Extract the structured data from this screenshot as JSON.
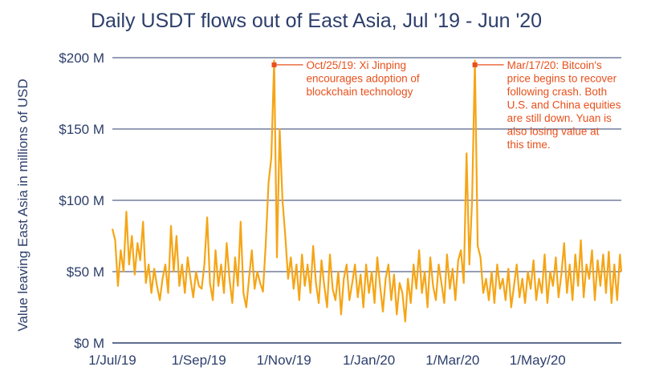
{
  "chart_data": {
    "type": "line",
    "title": "Daily USDT flows out of East Asia, Jul '19 - Jun '20",
    "ylabel": "Value leaving East Asia in millions of USD",
    "xlabel": "",
    "ylim": [
      0,
      200
    ],
    "y_ticks": [
      {
        "value": 0,
        "label": "$0 M"
      },
      {
        "value": 50,
        "label": "$50 M"
      },
      {
        "value": 100,
        "label": "$100 M"
      },
      {
        "value": 150,
        "label": "$150 M"
      },
      {
        "value": 200,
        "label": "$200 M"
      }
    ],
    "x_ticks": [
      {
        "date": "2019-07-01",
        "label": "1/Jul/19"
      },
      {
        "date": "2019-09-01",
        "label": "1/Sep/19"
      },
      {
        "date": "2019-11-01",
        "label": "1/Nov/19"
      },
      {
        "date": "2020-01-01",
        "label": "1/Jan/20"
      },
      {
        "date": "2020-03-01",
        "label": "1/Mar/20"
      },
      {
        "date": "2020-05-01",
        "label": "1/May/20"
      }
    ],
    "x_range": [
      "2019-07-01",
      "2020-06-30"
    ],
    "grid": "horizontal",
    "series": [
      {
        "color": "#f5a516",
        "points": [
          [
            "2019-07-01",
            80
          ],
          [
            "2019-07-03",
            72
          ],
          [
            "2019-07-05",
            40
          ],
          [
            "2019-07-07",
            65
          ],
          [
            "2019-07-09",
            50
          ],
          [
            "2019-07-11",
            92
          ],
          [
            "2019-07-13",
            55
          ],
          [
            "2019-07-15",
            75
          ],
          [
            "2019-07-17",
            48
          ],
          [
            "2019-07-19",
            70
          ],
          [
            "2019-07-21",
            58
          ],
          [
            "2019-07-23",
            85
          ],
          [
            "2019-07-25",
            42
          ],
          [
            "2019-07-27",
            55
          ],
          [
            "2019-07-29",
            35
          ],
          [
            "2019-07-31",
            52
          ],
          [
            "2019-08-02",
            40
          ],
          [
            "2019-08-04",
            30
          ],
          [
            "2019-08-06",
            45
          ],
          [
            "2019-08-08",
            55
          ],
          [
            "2019-08-10",
            35
          ],
          [
            "2019-08-12",
            82
          ],
          [
            "2019-08-14",
            50
          ],
          [
            "2019-08-16",
            75
          ],
          [
            "2019-08-18",
            40
          ],
          [
            "2019-08-20",
            55
          ],
          [
            "2019-08-22",
            35
          ],
          [
            "2019-08-24",
            60
          ],
          [
            "2019-08-26",
            45
          ],
          [
            "2019-08-28",
            32
          ],
          [
            "2019-08-30",
            50
          ],
          [
            "2019-09-01",
            40
          ],
          [
            "2019-09-03",
            38
          ],
          [
            "2019-09-05",
            55
          ],
          [
            "2019-09-07",
            88
          ],
          [
            "2019-09-09",
            42
          ],
          [
            "2019-09-11",
            30
          ],
          [
            "2019-09-13",
            65
          ],
          [
            "2019-09-15",
            40
          ],
          [
            "2019-09-17",
            55
          ],
          [
            "2019-09-19",
            35
          ],
          [
            "2019-09-21",
            70
          ],
          [
            "2019-09-23",
            45
          ],
          [
            "2019-09-25",
            28
          ],
          [
            "2019-09-27",
            60
          ],
          [
            "2019-09-29",
            40
          ],
          [
            "2019-10-01",
            85
          ],
          [
            "2019-10-03",
            35
          ],
          [
            "2019-10-05",
            25
          ],
          [
            "2019-10-07",
            45
          ],
          [
            "2019-10-09",
            65
          ],
          [
            "2019-10-11",
            38
          ],
          [
            "2019-10-13",
            50
          ],
          [
            "2019-10-15",
            42
          ],
          [
            "2019-10-17",
            36
          ],
          [
            "2019-10-19",
            70
          ],
          [
            "2019-10-21",
            112
          ],
          [
            "2019-10-23",
            130
          ],
          [
            "2019-10-25",
            198
          ],
          [
            "2019-10-27",
            60
          ],
          [
            "2019-10-29",
            150
          ],
          [
            "2019-10-31",
            100
          ],
          [
            "2019-11-02",
            75
          ],
          [
            "2019-11-04",
            45
          ],
          [
            "2019-11-06",
            60
          ],
          [
            "2019-11-08",
            38
          ],
          [
            "2019-11-10",
            55
          ],
          [
            "2019-11-12",
            30
          ],
          [
            "2019-11-14",
            62
          ],
          [
            "2019-11-16",
            40
          ],
          [
            "2019-11-18",
            55
          ],
          [
            "2019-11-20",
            35
          ],
          [
            "2019-11-22",
            68
          ],
          [
            "2019-11-24",
            42
          ],
          [
            "2019-11-26",
            28
          ],
          [
            "2019-11-28",
            58
          ],
          [
            "2019-11-30",
            40
          ],
          [
            "2019-12-02",
            25
          ],
          [
            "2019-12-04",
            62
          ],
          [
            "2019-12-06",
            38
          ],
          [
            "2019-12-08",
            30
          ],
          [
            "2019-12-10",
            50
          ],
          [
            "2019-12-12",
            20
          ],
          [
            "2019-12-14",
            45
          ],
          [
            "2019-12-16",
            55
          ],
          [
            "2019-12-18",
            30
          ],
          [
            "2019-12-20",
            42
          ],
          [
            "2019-12-22",
            55
          ],
          [
            "2019-12-24",
            32
          ],
          [
            "2019-12-26",
            48
          ],
          [
            "2019-12-28",
            25
          ],
          [
            "2019-12-30",
            55
          ],
          [
            "2020-01-01",
            35
          ],
          [
            "2020-01-03",
            50
          ],
          [
            "2020-01-05",
            28
          ],
          [
            "2020-01-07",
            60
          ],
          [
            "2020-01-09",
            40
          ],
          [
            "2020-01-11",
            22
          ],
          [
            "2020-01-13",
            45
          ],
          [
            "2020-01-15",
            55
          ],
          [
            "2020-01-17",
            30
          ],
          [
            "2020-01-19",
            48
          ],
          [
            "2020-01-21",
            20
          ],
          [
            "2020-01-23",
            42
          ],
          [
            "2020-01-25",
            35
          ],
          [
            "2020-01-27",
            15
          ],
          [
            "2020-01-29",
            45
          ],
          [
            "2020-01-31",
            28
          ],
          [
            "2020-02-02",
            55
          ],
          [
            "2020-02-04",
            38
          ],
          [
            "2020-02-06",
            65
          ],
          [
            "2020-02-08",
            35
          ],
          [
            "2020-02-10",
            50
          ],
          [
            "2020-02-12",
            25
          ],
          [
            "2020-02-14",
            60
          ],
          [
            "2020-02-16",
            40
          ],
          [
            "2020-02-18",
            30
          ],
          [
            "2020-02-20",
            55
          ],
          [
            "2020-02-22",
            42
          ],
          [
            "2020-02-24",
            28
          ],
          [
            "2020-02-26",
            62
          ],
          [
            "2020-02-28",
            38
          ],
          [
            "2020-03-01",
            52
          ],
          [
            "2020-03-03",
            30
          ],
          [
            "2020-03-05",
            58
          ],
          [
            "2020-03-07",
            65
          ],
          [
            "2020-03-09",
            42
          ],
          [
            "2020-03-11",
            133
          ],
          [
            "2020-03-13",
            55
          ],
          [
            "2020-03-15",
            100
          ],
          [
            "2020-03-17",
            198
          ],
          [
            "2020-03-19",
            68
          ],
          [
            "2020-03-21",
            60
          ],
          [
            "2020-03-23",
            35
          ],
          [
            "2020-03-25",
            45
          ],
          [
            "2020-03-27",
            30
          ],
          [
            "2020-03-29",
            50
          ],
          [
            "2020-03-31",
            28
          ],
          [
            "2020-04-02",
            55
          ],
          [
            "2020-04-04",
            38
          ],
          [
            "2020-04-06",
            45
          ],
          [
            "2020-04-08",
            30
          ],
          [
            "2020-04-10",
            52
          ],
          [
            "2020-04-12",
            25
          ],
          [
            "2020-04-14",
            40
          ],
          [
            "2020-04-16",
            55
          ],
          [
            "2020-04-18",
            32
          ],
          [
            "2020-04-20",
            45
          ],
          [
            "2020-04-22",
            28
          ],
          [
            "2020-04-24",
            50
          ],
          [
            "2020-04-26",
            38
          ],
          [
            "2020-04-28",
            58
          ],
          [
            "2020-04-30",
            30
          ],
          [
            "2020-05-02",
            45
          ],
          [
            "2020-05-04",
            35
          ],
          [
            "2020-05-06",
            62
          ],
          [
            "2020-05-08",
            28
          ],
          [
            "2020-05-10",
            50
          ],
          [
            "2020-05-12",
            40
          ],
          [
            "2020-05-14",
            60
          ],
          [
            "2020-05-16",
            32
          ],
          [
            "2020-05-18",
            48
          ],
          [
            "2020-05-20",
            70
          ],
          [
            "2020-05-22",
            35
          ],
          [
            "2020-05-24",
            55
          ],
          [
            "2020-05-26",
            30
          ],
          [
            "2020-05-28",
            62
          ],
          [
            "2020-05-30",
            40
          ],
          [
            "2020-06-01",
            72
          ],
          [
            "2020-06-03",
            32
          ],
          [
            "2020-06-05",
            55
          ],
          [
            "2020-06-07",
            45
          ],
          [
            "2020-06-09",
            65
          ],
          [
            "2020-06-11",
            30
          ],
          [
            "2020-06-13",
            58
          ],
          [
            "2020-06-15",
            40
          ],
          [
            "2020-06-17",
            62
          ],
          [
            "2020-06-19",
            35
          ],
          [
            "2020-06-21",
            64
          ],
          [
            "2020-06-23",
            28
          ],
          [
            "2020-06-25",
            55
          ],
          [
            "2020-06-27",
            30
          ],
          [
            "2020-06-29",
            62
          ],
          [
            "2020-06-30",
            50
          ]
        ]
      }
    ],
    "annotations": [
      {
        "date": "2019-10-25",
        "value": 195,
        "lines": [
          "Oct/25/19: Xi Jinping",
          "encourages adoption of",
          "blockchain technology"
        ],
        "color": "#e8501c"
      },
      {
        "date": "2020-03-17",
        "value": 195,
        "lines": [
          "Mar/17/20: Bitcoin's",
          "price begins to recover",
          "following crash. Both",
          "U.S. and China equities",
          "are still down. Yuan is",
          "also losing value at",
          "this time."
        ],
        "color": "#e8501c"
      }
    ],
    "colors": {
      "line": "#f5a516",
      "annotation": "#e8501c",
      "text": "#2c3e6b",
      "grid": "#2c3e6b"
    }
  }
}
